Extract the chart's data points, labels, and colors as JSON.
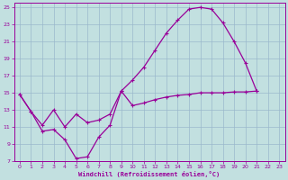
{
  "xlabel": "Windchill (Refroidissement éolien,°C)",
  "xlim": [
    -0.5,
    23.5
  ],
  "ylim": [
    7,
    25.5
  ],
  "xticks": [
    0,
    1,
    2,
    3,
    4,
    5,
    6,
    7,
    8,
    9,
    10,
    11,
    12,
    13,
    14,
    15,
    16,
    17,
    18,
    19,
    20,
    21,
    22,
    23
  ],
  "yticks": [
    7,
    9,
    11,
    13,
    15,
    17,
    19,
    21,
    23,
    25
  ],
  "bg_color": "#c2e0e0",
  "line_color": "#990099",
  "grid_color": "#9ab8cc",
  "line_upper": [
    [
      0,
      14.8
    ],
    [
      1,
      12.8
    ],
    [
      2,
      10.5
    ],
    [
      3,
      10.7
    ],
    [
      4,
      9.5
    ],
    [
      5,
      7.3
    ],
    [
      6,
      7.5
    ],
    [
      7,
      9.8
    ],
    [
      8,
      11.2
    ],
    [
      9,
      15.2
    ],
    [
      10,
      16.5
    ],
    [
      11,
      18.0
    ],
    [
      12,
      20.0
    ],
    [
      13,
      22.0
    ],
    [
      14,
      23.5
    ],
    [
      15,
      24.8
    ],
    [
      16,
      25.0
    ],
    [
      17,
      24.8
    ],
    [
      18,
      23.2
    ],
    [
      19,
      21.0
    ],
    [
      20,
      18.5
    ],
    [
      21,
      15.2
    ]
  ],
  "line_lower": [
    [
      0,
      14.8
    ],
    [
      1,
      12.8
    ],
    [
      2,
      11.2
    ],
    [
      3,
      13.0
    ],
    [
      4,
      11.0
    ],
    [
      5,
      12.5
    ],
    [
      6,
      11.5
    ],
    [
      7,
      11.8
    ],
    [
      8,
      12.5
    ],
    [
      9,
      15.2
    ],
    [
      10,
      13.5
    ],
    [
      11,
      13.8
    ],
    [
      12,
      14.2
    ],
    [
      13,
      14.5
    ],
    [
      14,
      14.7
    ],
    [
      15,
      14.8
    ],
    [
      16,
      15.0
    ],
    [
      17,
      15.0
    ],
    [
      18,
      15.0
    ],
    [
      19,
      15.1
    ],
    [
      20,
      15.1
    ],
    [
      21,
      15.2
    ]
  ]
}
